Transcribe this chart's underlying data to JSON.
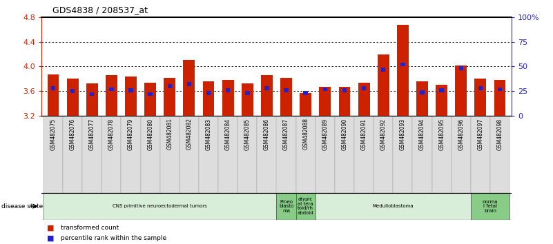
{
  "title": "GDS4838 / 208537_at",
  "samples": [
    "GSM482075",
    "GSM482076",
    "GSM482077",
    "GSM482078",
    "GSM482079",
    "GSM482080",
    "GSM482081",
    "GSM482082",
    "GSM482083",
    "GSM482084",
    "GSM482085",
    "GSM482086",
    "GSM482087",
    "GSM482088",
    "GSM482089",
    "GSM482090",
    "GSM482091",
    "GSM482092",
    "GSM482093",
    "GSM482094",
    "GSM482095",
    "GSM482096",
    "GSM482097",
    "GSM482098"
  ],
  "transformed_count": [
    3.87,
    3.8,
    3.73,
    3.86,
    3.84,
    3.74,
    3.81,
    4.11,
    3.76,
    3.78,
    3.73,
    3.86,
    3.82,
    3.57,
    3.67,
    3.67,
    3.74,
    4.2,
    4.68,
    3.76,
    3.7,
    4.02,
    3.8,
    3.78
  ],
  "percentile_rank": [
    28,
    25,
    22,
    27,
    26,
    22,
    30,
    32,
    23,
    26,
    23,
    28,
    26,
    23,
    27,
    26,
    28,
    47,
    52,
    24,
    26,
    48,
    28,
    27
  ],
  "ylim_left": [
    3.2,
    4.8
  ],
  "ylim_right": [
    0,
    100
  ],
  "yticks_left": [
    3.2,
    3.6,
    4.0,
    4.4,
    4.8
  ],
  "yticks_right": [
    0,
    25,
    50,
    75,
    100
  ],
  "ytick_labels_right": [
    "0",
    "25",
    "50",
    "75",
    "100%"
  ],
  "grid_values": [
    3.6,
    4.0,
    4.4
  ],
  "bar_color_red": "#cc2200",
  "bar_color_blue": "#2222cc",
  "bg_color": "#ffffff",
  "disease_groups": [
    {
      "label": "CNS primitive neuroectodermal tumors",
      "start": 0,
      "end": 12,
      "color": "#d8eed8"
    },
    {
      "label": "Pineo\nblasto\nma",
      "start": 12,
      "end": 13,
      "color": "#88cc88"
    },
    {
      "label": "atypic\nal tera\ntoid/rh\nabdoid",
      "start": 13,
      "end": 14,
      "color": "#88cc88"
    },
    {
      "label": "Medulloblastoma",
      "start": 14,
      "end": 22,
      "color": "#d8eed8"
    },
    {
      "label": "norma\nl fetal\nbrain",
      "start": 22,
      "end": 24,
      "color": "#88cc88"
    }
  ],
  "axis_color_left": "#cc2200",
  "axis_color_right": "#2222cc",
  "xtick_bg": "#dddddd"
}
